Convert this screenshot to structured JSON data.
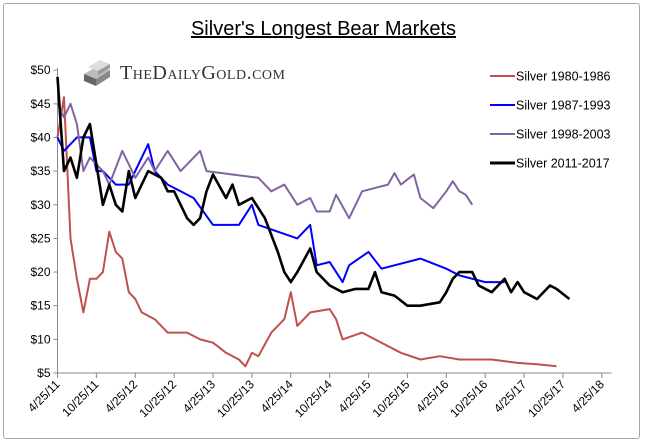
{
  "logo": {
    "text": "TheDailyGold.com",
    "icon": "silver-bars-icon"
  },
  "chart_data": {
    "type": "line",
    "title": "Silver's Longest Bear Markets",
    "xlabel": "",
    "ylabel": "",
    "x_ticks": [
      "4/25/11",
      "10/25/11",
      "4/25/12",
      "10/25/12",
      "4/25/13",
      "10/25/13",
      "4/25/14",
      "10/25/14",
      "4/25/15",
      "10/25/15",
      "4/25/16",
      "10/25/16",
      "4/25/17",
      "10/25/17",
      "4/25/18"
    ],
    "xlim": [
      "2011-04-25",
      "2018-04-25"
    ],
    "y_ticks": [
      "$5",
      "$10",
      "$15",
      "$20",
      "$25",
      "$30",
      "$35",
      "$40",
      "$45",
      "$50"
    ],
    "ylim": [
      5,
      50
    ],
    "grid": false,
    "legend_position": "top-right",
    "series": [
      {
        "name": "Silver 1980-1986",
        "color": "#c0504d",
        "points": [
          [
            "2011-04",
            40
          ],
          [
            "2011-05",
            46
          ],
          [
            "2011-06",
            25
          ],
          [
            "2011-07",
            19
          ],
          [
            "2011-08",
            14
          ],
          [
            "2011-09",
            19
          ],
          [
            "2011-10",
            19
          ],
          [
            "2011-11",
            20
          ],
          [
            "2011-12",
            26
          ],
          [
            "2012-01",
            23
          ],
          [
            "2012-02",
            22
          ],
          [
            "2012-03",
            17
          ],
          [
            "2012-04",
            16
          ],
          [
            "2012-05",
            14
          ],
          [
            "2012-07",
            13
          ],
          [
            "2012-09",
            11
          ],
          [
            "2012-12",
            11
          ],
          [
            "2013-02",
            10
          ],
          [
            "2013-04",
            9.5
          ],
          [
            "2013-06",
            8
          ],
          [
            "2013-08",
            7
          ],
          [
            "2013-09",
            6
          ],
          [
            "2013-10",
            8
          ],
          [
            "2013-11",
            7.5
          ],
          [
            "2014-01",
            11
          ],
          [
            "2014-03",
            13
          ],
          [
            "2014-04",
            17
          ],
          [
            "2014-05",
            12
          ],
          [
            "2014-07",
            14
          ],
          [
            "2014-10",
            14.5
          ],
          [
            "2014-11",
            13
          ],
          [
            "2014-12",
            10
          ],
          [
            "2015-03",
            11
          ],
          [
            "2015-05",
            10
          ],
          [
            "2015-09",
            8
          ],
          [
            "2015-12",
            7
          ],
          [
            "2016-03",
            7.5
          ],
          [
            "2016-06",
            7
          ],
          [
            "2016-11",
            7
          ],
          [
            "2017-03",
            6.5
          ],
          [
            "2017-06",
            6.3
          ],
          [
            "2017-09",
            6
          ]
        ]
      },
      {
        "name": "Silver 1987-1993",
        "color": "#0000ff",
        "points": [
          [
            "2011-04",
            40
          ],
          [
            "2011-05",
            38
          ],
          [
            "2011-07",
            40
          ],
          [
            "2011-09",
            40
          ],
          [
            "2011-10",
            35
          ],
          [
            "2011-11",
            35
          ],
          [
            "2012-01",
            33
          ],
          [
            "2012-03",
            33
          ],
          [
            "2012-05",
            37
          ],
          [
            "2012-06",
            39
          ],
          [
            "2012-07",
            35
          ],
          [
            "2012-09",
            33
          ],
          [
            "2012-11",
            32
          ],
          [
            "2013-01",
            31
          ],
          [
            "2013-04",
            27
          ],
          [
            "2013-08",
            27
          ],
          [
            "2013-10",
            30
          ],
          [
            "2013-11",
            27
          ],
          [
            "2014-02",
            26
          ],
          [
            "2014-05",
            25
          ],
          [
            "2014-07",
            27
          ],
          [
            "2014-08",
            21
          ],
          [
            "2014-10",
            21.5
          ],
          [
            "2014-12",
            18.5
          ],
          [
            "2015-01",
            21
          ],
          [
            "2015-04",
            23
          ],
          [
            "2015-06",
            20.5
          ],
          [
            "2015-12",
            22
          ],
          [
            "2016-04",
            20.5
          ],
          [
            "2016-06",
            19.5
          ],
          [
            "2016-10",
            18.5
          ],
          [
            "2017-01",
            18.5
          ]
        ]
      },
      {
        "name": "Silver 1998-2003",
        "color": "#8064a2",
        "points": [
          [
            "2011-04",
            45
          ],
          [
            "2011-05",
            43
          ],
          [
            "2011-06",
            45
          ],
          [
            "2011-07",
            42
          ],
          [
            "2011-08",
            35
          ],
          [
            "2011-09",
            37
          ],
          [
            "2011-11",
            35
          ],
          [
            "2011-12",
            33
          ],
          [
            "2012-02",
            38
          ],
          [
            "2012-04",
            34
          ],
          [
            "2012-06",
            37
          ],
          [
            "2012-07",
            35
          ],
          [
            "2012-09",
            38
          ],
          [
            "2012-11",
            35
          ],
          [
            "2013-02",
            38
          ],
          [
            "2013-03",
            35
          ],
          [
            "2013-07",
            34.5
          ],
          [
            "2013-11",
            34
          ],
          [
            "2014-01",
            32
          ],
          [
            "2014-03",
            33
          ],
          [
            "2014-05",
            30
          ],
          [
            "2014-07",
            31
          ],
          [
            "2014-08",
            29
          ],
          [
            "2014-10",
            29
          ],
          [
            "2014-11",
            31.5
          ],
          [
            "2015-01",
            28
          ],
          [
            "2015-03",
            32
          ],
          [
            "2015-07",
            33
          ],
          [
            "2015-08",
            34.7
          ],
          [
            "2015-09",
            33
          ],
          [
            "2015-11",
            34.5
          ],
          [
            "2015-12",
            31
          ],
          [
            "2016-02",
            29.5
          ],
          [
            "2016-04",
            32
          ],
          [
            "2016-05",
            33.5
          ],
          [
            "2016-06",
            32
          ],
          [
            "2016-07",
            31.5
          ],
          [
            "2016-08",
            30
          ]
        ]
      },
      {
        "name": "Silver 2011-2017",
        "color": "#000000",
        "points": [
          [
            "2011-04",
            49
          ],
          [
            "2011-05",
            35
          ],
          [
            "2011-06",
            37
          ],
          [
            "2011-07",
            34
          ],
          [
            "2011-08",
            40
          ],
          [
            "2011-09",
            42
          ],
          [
            "2011-10",
            36
          ],
          [
            "2011-11",
            30
          ],
          [
            "2011-12",
            33
          ],
          [
            "2012-01",
            30
          ],
          [
            "2012-02",
            29
          ],
          [
            "2012-03",
            35
          ],
          [
            "2012-04",
            31
          ],
          [
            "2012-05",
            33
          ],
          [
            "2012-06",
            35
          ],
          [
            "2012-08",
            34
          ],
          [
            "2012-09",
            32
          ],
          [
            "2012-10",
            32
          ],
          [
            "2012-12",
            28
          ],
          [
            "2013-01",
            27
          ],
          [
            "2013-02",
            28
          ],
          [
            "2013-03",
            32
          ],
          [
            "2013-04",
            34.5
          ],
          [
            "2013-06",
            31
          ],
          [
            "2013-07",
            33
          ],
          [
            "2013-08",
            30
          ],
          [
            "2013-10",
            31
          ],
          [
            "2013-12",
            28
          ],
          [
            "2014-02",
            23
          ],
          [
            "2014-03",
            20
          ],
          [
            "2014-04",
            18.5
          ],
          [
            "2014-05",
            20
          ],
          [
            "2014-07",
            23.5
          ],
          [
            "2014-08",
            20
          ],
          [
            "2014-10",
            18
          ],
          [
            "2014-12",
            17
          ],
          [
            "2015-02",
            17.5
          ],
          [
            "2015-04",
            17.5
          ],
          [
            "2015-05",
            20
          ],
          [
            "2015-06",
            17
          ],
          [
            "2015-08",
            16.5
          ],
          [
            "2015-10",
            15
          ],
          [
            "2015-12",
            15
          ],
          [
            "2016-03",
            15.5
          ],
          [
            "2016-04",
            17
          ],
          [
            "2016-05",
            19
          ],
          [
            "2016-06",
            20
          ],
          [
            "2016-08",
            20
          ],
          [
            "2016-09",
            18
          ],
          [
            "2016-11",
            17
          ],
          [
            "2016-12",
            18
          ],
          [
            "2017-01",
            19
          ],
          [
            "2017-02",
            17
          ],
          [
            "2017-03",
            18.5
          ],
          [
            "2017-04",
            17
          ],
          [
            "2017-06",
            16
          ],
          [
            "2017-08",
            18
          ],
          [
            "2017-09",
            17.5
          ],
          [
            "2017-11",
            16
          ]
        ]
      }
    ]
  }
}
